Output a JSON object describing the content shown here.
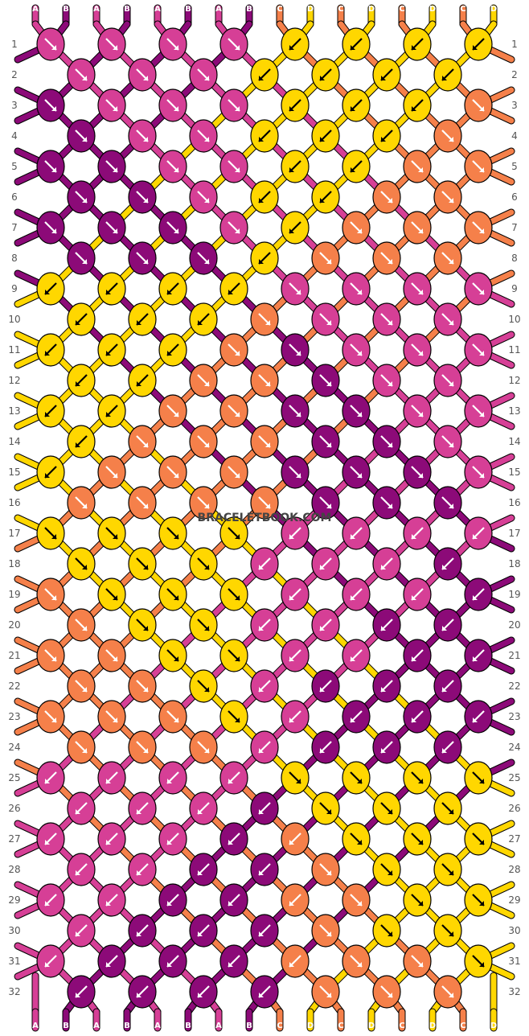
{
  "watermark": "BRACELETBOOK.COM",
  "strand_letters": [
    "A",
    "B",
    "A",
    "B",
    "A",
    "B",
    "A",
    "B",
    "C",
    "D",
    "C",
    "D",
    "C",
    "D",
    "C",
    "D"
  ],
  "colors": {
    "A": "#d63f96",
    "B": "#8c0a78",
    "C": "#f5804a",
    "D": "#ffd700"
  },
  "rows": [
    "1",
    "2",
    "3",
    "4",
    "5",
    "6",
    "7",
    "8",
    "9",
    "10",
    "11",
    "12",
    "13",
    "14",
    "15",
    "16",
    "17",
    "18",
    "19",
    "20",
    "21",
    "22",
    "23",
    "24",
    "25",
    "26",
    "27",
    "28",
    "29",
    "30",
    "31",
    "32"
  ],
  "knots": [
    "ra ra ra ra ld ld ld ld",
    "ra ra ra ld ld ld ld",
    "rb ra ra ra ld ld ld rc",
    "rb ra ra ld ld ld rc",
    "rb rb ra ra ld ld rc rc",
    "rb rb ra ld ld rc rc",
    "rb rb rb ra ld rc rc rc",
    "rb rb rb ld rc rc rc",
    "ld ld ld ld ra ra ra ra",
    "ld ld ld rc ra ra ra",
    "ld ld ld rc rb ra ra ra",
    "ld ld rc rc rb ra ra",
    "ld ld rc rc rb rb ra ra",
    "ld rc rc rc rb rb ra",
    "ld rc rc rc rb rb rb ra",
    "rc rc rc rc rb rb rb",
    "rd rd rd rd la la la la",
    "rd rd rd la la la lb",
    "rc rd rd rd la la la lb",
    "rc rd rd la la lb lb",
    "rc rc rd rd la la lb lb",
    "rc rc rd la lb lb lb",
    "rc rc rc rd la lb lb lb",
    "rc rc rc la lb lb lb",
    "la la la la rd rd rd rd",
    "la la la lb rd rd rd",
    "la la la lb lc rd rd rd",
    "la la lb lb rc rd rd",
    "la la lb lb lc rc rd rd",
    "la lb lb lb rc rd rd",
    "la lb lb lb lc rc rc rd",
    "lb lb lb lb rc rc rc"
  ]
}
